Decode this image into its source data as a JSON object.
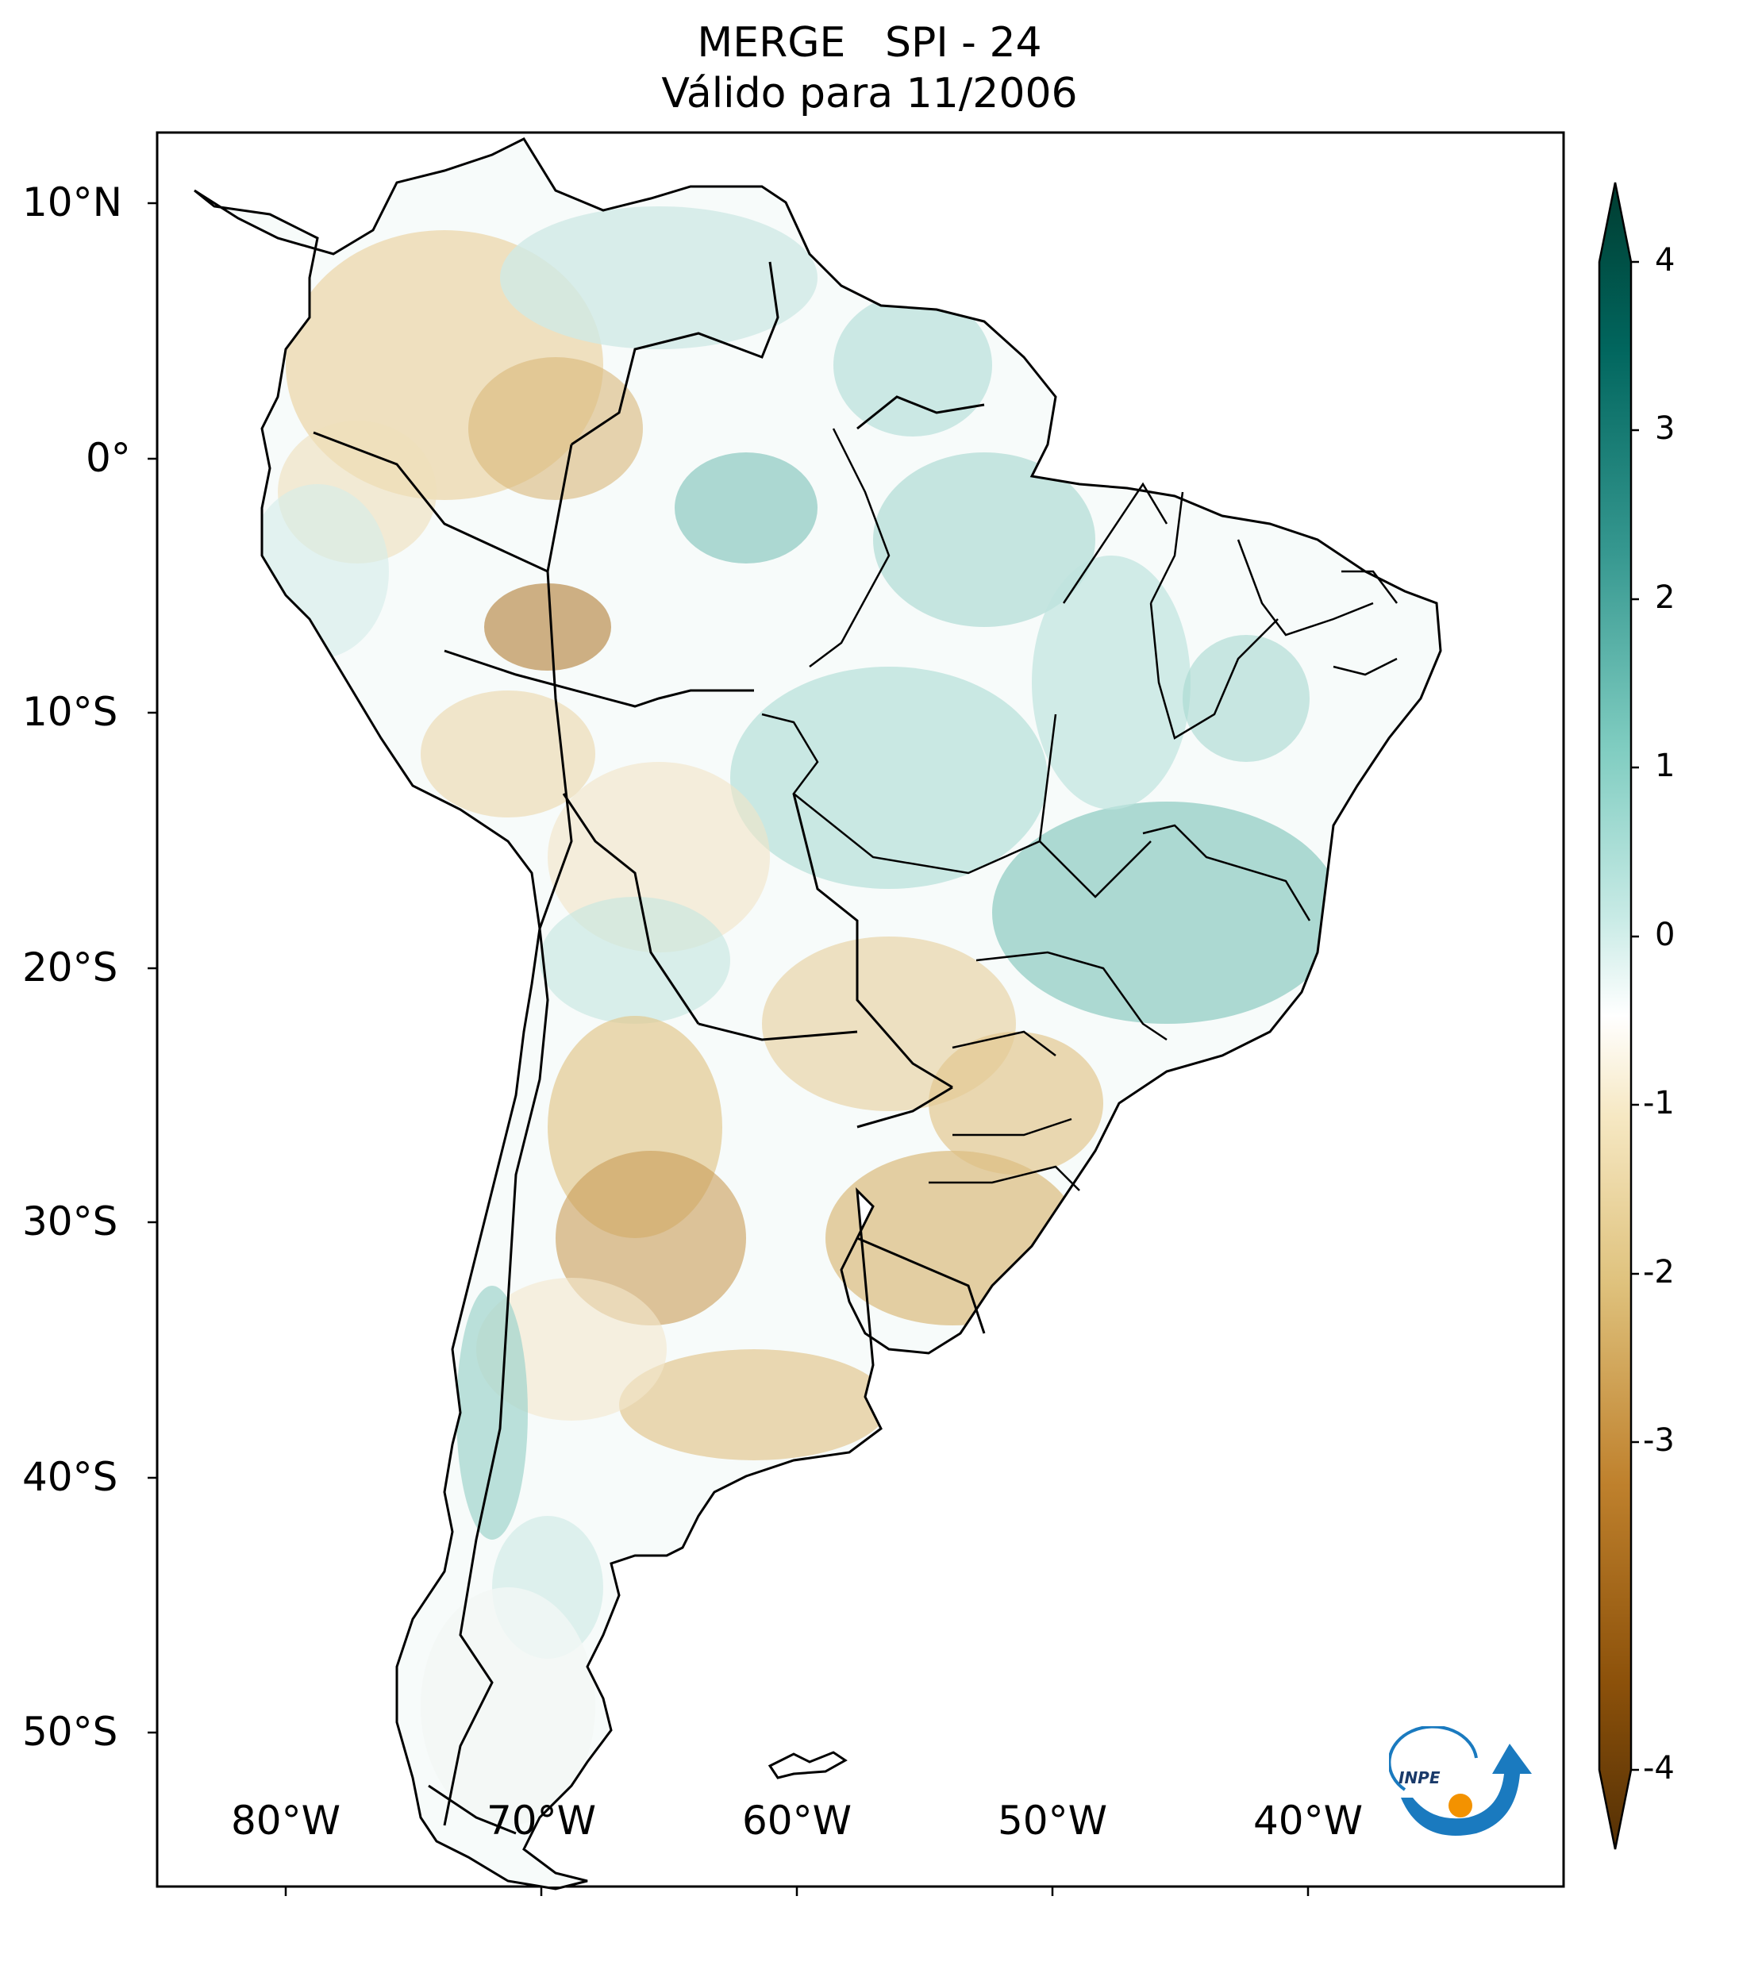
{
  "title": {
    "line1": "MERGE   SPI - 24",
    "line2": "Válido para 11/2006"
  },
  "axes": {
    "lat_ticks": [
      "10°N",
      "0°",
      "10°S",
      "20°S",
      "30°S",
      "40°S",
      "50°S"
    ],
    "lon_ticks": [
      "80°W",
      "70°W",
      "60°W",
      "50°W",
      "40°W"
    ],
    "lat_values": [
      10,
      0,
      -10,
      -20,
      -30,
      -40,
      -50
    ],
    "lon_values": [
      -80,
      -70,
      -60,
      -50,
      -40
    ],
    "lon_range": [
      -85,
      -30
    ],
    "lat_range": [
      -56,
      13
    ]
  },
  "colorbar": {
    "ticks": [
      "4",
      "3",
      "2",
      "1",
      "0",
      "-1",
      "-2",
      "-3",
      "-4"
    ],
    "range": [
      -4,
      4
    ],
    "extend": "both",
    "colormap": "BrBG",
    "colors": [
      "#543005",
      "#8c510a",
      "#bf812d",
      "#dfc27d",
      "#f6e8c3",
      "#ffffff",
      "#c7eae5",
      "#80cdc1",
      "#35978f",
      "#01665e",
      "#003c30"
    ]
  },
  "logo": {
    "text": "INPE",
    "colors": [
      "#1a7abf",
      "#f39200"
    ]
  }
}
